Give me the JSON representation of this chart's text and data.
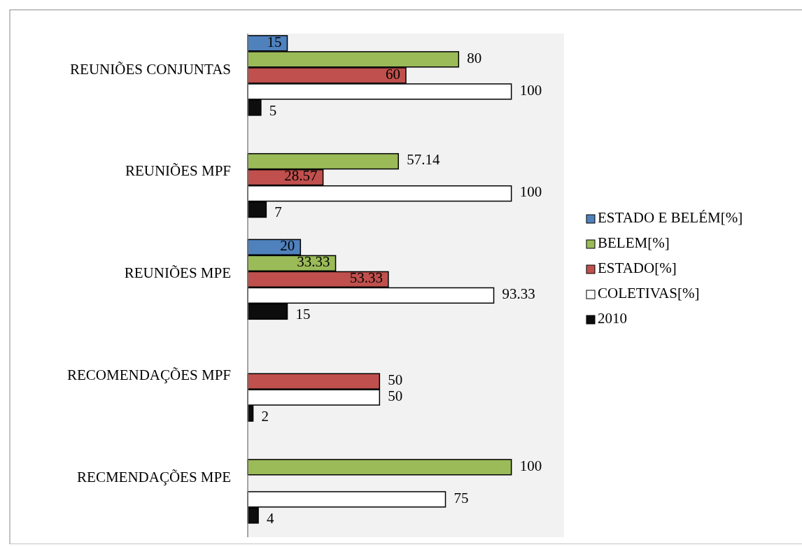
{
  "chart_data": {
    "type": "bar",
    "orientation": "horizontal",
    "categories": [
      "REUNIÕES CONJUNTAS",
      "REUNIÕES MPF",
      "REUNIÕES MPE",
      "RECOMENDAÇÕES MPF",
      "RECMENDAÇÕES MPE"
    ],
    "series": [
      {
        "name": "ESTADO E BELÉM[%]",
        "color": "#4f81bd",
        "values": [
          15,
          null,
          20,
          null,
          null
        ]
      },
      {
        "name": "BELEM[%]",
        "color": "#9bbb59",
        "values": [
          80,
          57.14,
          33.33,
          null,
          100
        ]
      },
      {
        "name": "ESTADO[%]",
        "color": "#c0504d",
        "values": [
          60,
          28.57,
          53.33,
          50,
          null
        ]
      },
      {
        "name": "COLETIVAS[%]",
        "color": "#ffffff",
        "values": [
          100,
          100,
          93.33,
          50,
          75
        ]
      },
      {
        "name": "2010",
        "color": "#0d0d0d",
        "values": [
          5,
          7,
          15,
          2,
          4
        ]
      }
    ],
    "xlim": [
      0,
      120
    ],
    "data_labels": true,
    "legend": "right",
    "grid": false
  }
}
